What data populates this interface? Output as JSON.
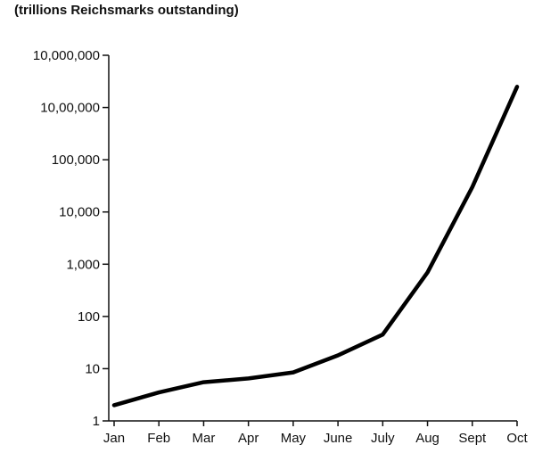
{
  "chart_data": {
    "type": "line",
    "title": "",
    "unit_label": "(trillions Reichsmarks outstanding)",
    "xlabel": "",
    "ylabel": "",
    "y_scale": "log",
    "ylim": [
      1,
      10000000
    ],
    "grid": false,
    "categories": [
      "Jan",
      "Feb",
      "Mar",
      "Apr",
      "May",
      "June",
      "July",
      "Aug",
      "Sept",
      "Oct"
    ],
    "y_ticks": [
      {
        "value": 1,
        "label": "1"
      },
      {
        "value": 10,
        "label": "10"
      },
      {
        "value": 100,
        "label": "100"
      },
      {
        "value": 1000,
        "label": "1,000"
      },
      {
        "value": 10000,
        "label": "10,000"
      },
      {
        "value": 100000,
        "label": "100,000"
      },
      {
        "value": 1000000,
        "label": "10,00,000"
      },
      {
        "value": 10000000,
        "label": "10,000,000"
      }
    ],
    "series": [
      {
        "values": [
          2,
          3.5,
          5.5,
          6.5,
          8.5,
          18,
          45,
          700,
          30000,
          2500000
        ],
        "color": "#000000"
      }
    ]
  }
}
